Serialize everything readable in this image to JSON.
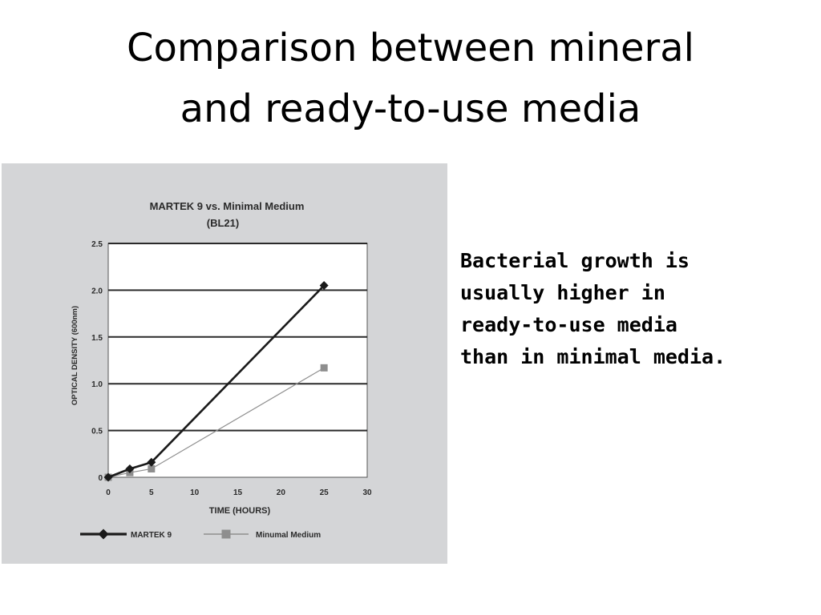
{
  "slide": {
    "title_lines": [
      "Comparison between mineral",
      "and ready-to-use media"
    ],
    "body_lines": [
      "Bacterial growth is",
      "usually higher in",
      "ready-to-use media",
      "than in minimal media."
    ]
  },
  "chart_data": {
    "type": "line",
    "title": "MARTEK 9 vs. Minimal Medium",
    "subtitle": "(BL21)",
    "xlabel": "TIME (HOURS)",
    "ylabel": "OPTICAL DENSITY (600nm)",
    "xlim": [
      0,
      30
    ],
    "ylim": [
      0,
      2.5
    ],
    "x_ticks": [
      0,
      5,
      10,
      15,
      20,
      25,
      30
    ],
    "x_tick_labels": [
      "0",
      "5",
      "10",
      "15",
      "20",
      "25",
      "30"
    ],
    "y_ticks": [
      0,
      0.5,
      1.0,
      1.5,
      2.0,
      2.5
    ],
    "y_tick_labels": [
      "0",
      "0.5",
      "1.0",
      "1.5",
      "2.0",
      "2.5"
    ],
    "grid": "horizontal",
    "legend_position": "bottom",
    "series": [
      {
        "name": "MARTEK 9",
        "marker": "diamond",
        "color": "#1a1a1a",
        "points": [
          [
            0,
            0.0
          ],
          [
            2.5,
            0.09
          ],
          [
            5,
            0.16
          ],
          [
            25,
            2.05
          ]
        ]
      },
      {
        "name": "Minumal Medium",
        "marker": "square",
        "color": "#8e8e8e",
        "points": [
          [
            0,
            0.0
          ],
          [
            2.5,
            0.05
          ],
          [
            5,
            0.09
          ],
          [
            25,
            1.17
          ]
        ]
      }
    ]
  },
  "colors": {
    "figure_background": "#d4d5d7",
    "plot_background": "#ffffff",
    "axis_text": "#2a2a2a"
  }
}
